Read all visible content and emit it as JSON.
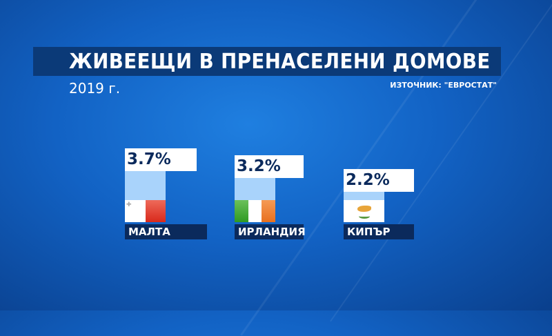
{
  "chart_data": {
    "type": "bar",
    "title": "ЖИВЕЕЩИ В ПРЕНАСЕЛЕНИ ДОМОВЕ",
    "subtitle": "2019 г.",
    "source": "ИЗТОЧНИК: \"ЕВРОСТАТ\"",
    "categories": [
      "МАЛТА",
      "ИРЛАНДИЯ",
      "КИПЪР"
    ],
    "values": [
      3.7,
      3.2,
      2.2
    ],
    "value_labels": [
      "3.7%",
      "3.2%",
      "2.2%"
    ],
    "flags": [
      "malta-flag",
      "ireland-flag",
      "cyprus-flag"
    ],
    "grid": false,
    "colors": {
      "bar": "#a9d3fb",
      "label_bg": "#0b2a5c",
      "title_bg": "#0b3a78"
    }
  }
}
